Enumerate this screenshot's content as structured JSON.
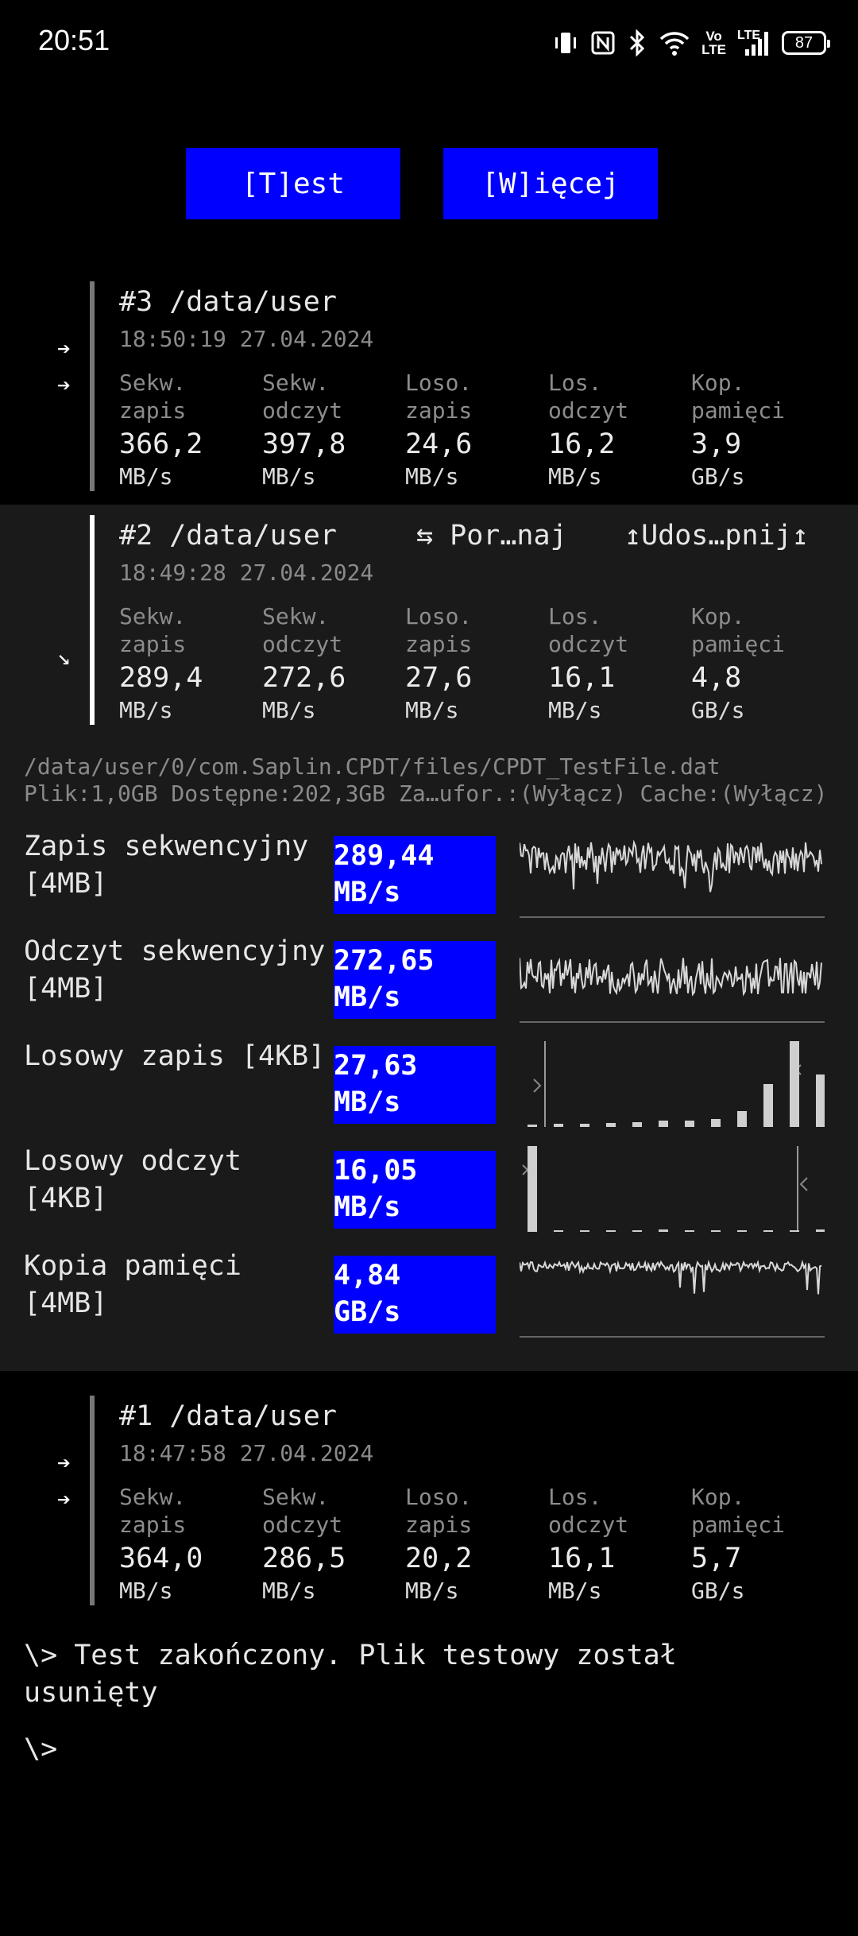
{
  "status_bar": {
    "time": "20:51",
    "icons": [
      "vibrate-icon",
      "nfc-icon",
      "bluetooth-icon",
      "wifi-icon",
      "volte-icon",
      "lte-signal-icon"
    ],
    "volte_top": "Vo",
    "volte_bottom": "LTE",
    "lte_label": "LTE",
    "battery": "87"
  },
  "toolbar": {
    "test_label": "[T]est",
    "more_label": "[W]ięcej"
  },
  "metric_labels": [
    {
      "line1": "Sekw.",
      "line2": "zapis"
    },
    {
      "line1": "Sekw.",
      "line2": "odczyt"
    },
    {
      "line1": "Loso.",
      "line2": "zapis"
    },
    {
      "line1": "Los.",
      "line2": "odczyt"
    },
    {
      "line1": "Kop.",
      "line2": "pamięci"
    }
  ],
  "results": [
    {
      "title": "#3 /data/user",
      "datetime": "18:50:19 27.04.2024",
      "values": [
        "366,2",
        "397,8",
        "24,6",
        "16,2",
        "3,9"
      ],
      "units": [
        "MB/s",
        "MB/s",
        "MB/s",
        "MB/s",
        "GB/s"
      ]
    },
    {
      "title": "#2 /data/user",
      "datetime": "18:49:28 27.04.2024",
      "compare_label": "⇆ Por…naj",
      "share_label": "↥Udos…pnij↥",
      "values": [
        "289,4",
        "272,6",
        "27,6",
        "16,1",
        "4,8"
      ],
      "units": [
        "MB/s",
        "MB/s",
        "MB/s",
        "MB/s",
        "GB/s"
      ]
    },
    {
      "title": "#1 /data/user",
      "datetime": "18:47:58 27.04.2024",
      "values": [
        "364,0",
        "286,5",
        "20,2",
        "16,1",
        "5,7"
      ],
      "units": [
        "MB/s",
        "MB/s",
        "MB/s",
        "MB/s",
        "GB/s"
      ]
    }
  ],
  "detail": {
    "path": "/data/user/0/com.Saplin.CPDT/files/CPDT_TestFile.dat",
    "info": "Plik:1,0GB Dostępne:202,3GB Za…ufor.:(Wyłącz) Cache:(Wyłącz)",
    "tests": [
      {
        "label": "Zapis sekwencyjny [4MB]",
        "value": "289,44",
        "unit": "MB/s"
      },
      {
        "label": "Odczyt sekwencyjny [4MB]",
        "value": "272,65",
        "unit": "MB/s"
      },
      {
        "label": "Losowy zapis [4KB]",
        "value": "27,63",
        "unit": "MB/s"
      },
      {
        "label": "Losowy odczyt [4KB]",
        "value": "16,05",
        "unit": "MB/s"
      },
      {
        "label": "Kopia pamięci [4MB]",
        "value": "4,84",
        "unit": "GB/s"
      }
    ]
  },
  "console": {
    "message": "\\> Test zakończony. Plik testowy został\nusunięty",
    "prompt": "\\>"
  },
  "colors": {
    "background": "#000000",
    "highlight_background": "#1a1a1a",
    "accent_blue": "#0000ff",
    "text": "#e8e8e8",
    "muted_text": "#8a8a8a"
  }
}
